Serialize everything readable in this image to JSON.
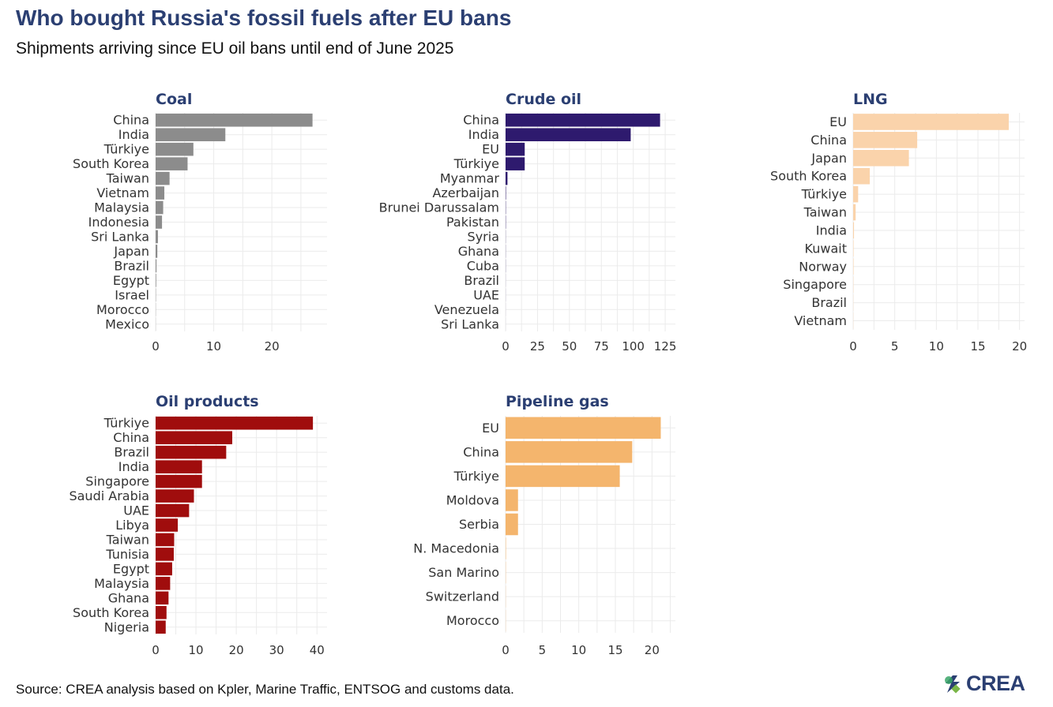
{
  "title": "Who bought Russia's fossil fuels after EU bans",
  "subtitle": "Shipments arriving since EU oil bans until end of June 2025",
  "source": "Source: CREA analysis based on Kpler, Marine Traffic, ENTSOG and customs data.",
  "logo_text": "CREA",
  "chart_data": [
    {
      "type": "bar",
      "orientation": "horizontal",
      "title": "Coal",
      "color": "#8c8c8c",
      "categories": [
        "China",
        "India",
        "Türkiye",
        "South Korea",
        "Taiwan",
        "Vietnam",
        "Malaysia",
        "Indonesia",
        "Sri Lanka",
        "Japan",
        "Brazil",
        "Egypt",
        "Israel",
        "Morocco",
        "Mexico"
      ],
      "values": [
        27,
        12,
        6.5,
        5.5,
        2.4,
        1.5,
        1.3,
        1.1,
        0.4,
        0.3,
        0.15,
        0.1,
        0.05,
        0.03,
        0.02
      ],
      "xlim": [
        0,
        29.5
      ],
      "xticks": [
        0,
        10,
        20
      ],
      "grid": true
    },
    {
      "type": "bar",
      "orientation": "horizontal",
      "title": "Crude oil",
      "color": "#2e1a6e",
      "categories": [
        "China",
        "India",
        "EU",
        "Türkiye",
        "Myanmar",
        "Azerbaijan",
        "Brunei Darussalam",
        "Pakistan",
        "Syria",
        "Ghana",
        "Cuba",
        "Brazil",
        "UAE",
        "Venezuela",
        "Sri Lanka"
      ],
      "values": [
        121,
        98,
        15,
        15,
        1.5,
        0.3,
        0.2,
        0.2,
        0.1,
        0.1,
        0.1,
        0.05,
        0.05,
        0.03,
        0.02
      ],
      "xlim": [
        0,
        133
      ],
      "xticks": [
        0,
        25,
        50,
        75,
        100,
        125
      ],
      "grid": true
    },
    {
      "type": "bar",
      "orientation": "horizontal",
      "title": "LNG",
      "color": "#fad3ab",
      "categories": [
        "EU",
        "China",
        "Japan",
        "South Korea",
        "Türkiye",
        "Taiwan",
        "India",
        "Kuwait",
        "Norway",
        "Singapore",
        "Brazil",
        "Vietnam"
      ],
      "values": [
        18.7,
        7.7,
        6.7,
        2.0,
        0.6,
        0.3,
        0.1,
        0.05,
        0.05,
        0.03,
        0.02,
        0.02
      ],
      "xlim": [
        0,
        20.6
      ],
      "xticks": [
        0,
        5,
        10,
        15,
        20
      ],
      "grid": true
    },
    {
      "type": "bar",
      "orientation": "horizontal",
      "title": "Oil products",
      "color": "#a00d0d",
      "categories": [
        "Türkiye",
        "China",
        "Brazil",
        "India",
        "Singapore",
        "Saudi Arabia",
        "UAE",
        "Libya",
        "Taiwan",
        "Tunisia",
        "Egypt",
        "Malaysia",
        "Ghana",
        "South Korea",
        "Nigeria"
      ],
      "values": [
        39,
        19,
        17.5,
        11.5,
        11.5,
        9.5,
        8.3,
        5.5,
        4.6,
        4.5,
        4.1,
        3.6,
        3.2,
        2.7,
        2.5
      ],
      "xlim": [
        0,
        42.5
      ],
      "xticks": [
        0,
        10,
        20,
        30,
        40
      ],
      "grid": true
    },
    {
      "type": "bar",
      "orientation": "horizontal",
      "title": "Pipeline gas",
      "color": "#f4b56d",
      "categories": [
        "EU",
        "China",
        "Türkiye",
        "Moldova",
        "Serbia",
        "N. Macedonia",
        "San Marino",
        "Switzerland",
        "Morocco"
      ],
      "values": [
        21.2,
        17.3,
        15.6,
        1.7,
        1.7,
        0.05,
        0.03,
        0.02,
        0.02
      ],
      "xlim": [
        0,
        23.2
      ],
      "xticks": [
        0,
        5,
        10,
        15,
        20
      ],
      "grid": true
    }
  ]
}
